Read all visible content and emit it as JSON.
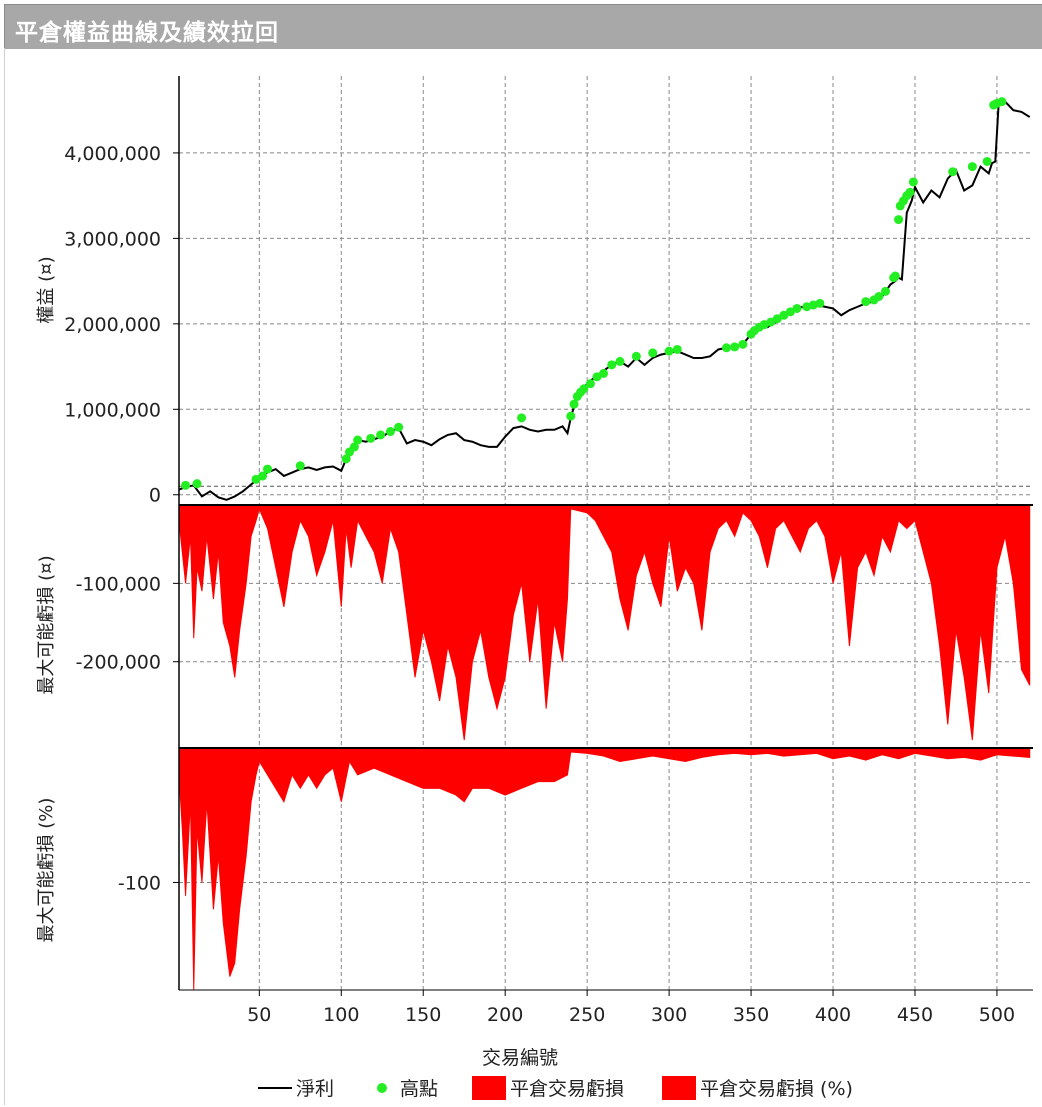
{
  "window": {
    "title": "平倉權益曲線及績效拉回"
  },
  "chart_data": {
    "type": "line",
    "x_label": "交易編號",
    "x_ticks": [
      50,
      100,
      150,
      200,
      250,
      300,
      350,
      400,
      450,
      500
    ],
    "x_range": [
      1,
      522
    ],
    "grid": true,
    "legend_position": "bottom",
    "legend": [
      "淨利",
      "高點",
      "平倉交易虧損",
      "平倉交易虧損 (%)"
    ],
    "colors": {
      "net_profit": "#000000",
      "highs": "#22ee22",
      "drawdown": "#ff0000"
    },
    "panels": [
      {
        "name": "equity",
        "ylabel": "權益 (¤)",
        "y_ticks": [
          "0",
          "1,000,000",
          "2,000,000",
          "3,000,000",
          "4,000,000"
        ],
        "y_tick_values": [
          0,
          1000000,
          2000000,
          3000000,
          4000000
        ],
        "y_range": [
          -120000,
          4900000
        ],
        "series": [
          {
            "name": "淨利",
            "x": [
              1,
              5,
              10,
              15,
              20,
              25,
              30,
              35,
              40,
              45,
              50,
              55,
              60,
              65,
              70,
              75,
              80,
              85,
              90,
              95,
              100,
              103,
              106,
              110,
              115,
              120,
              125,
              130,
              135,
              140,
              145,
              150,
              155,
              160,
              165,
              170,
              175,
              180,
              185,
              190,
              195,
              200,
              205,
              210,
              215,
              220,
              225,
              230,
              235,
              238,
              240,
              243,
              246,
              250,
              255,
              260,
              265,
              270,
              275,
              280,
              285,
              290,
              295,
              300,
              305,
              310,
              315,
              320,
              325,
              330,
              335,
              340,
              345,
              350,
              355,
              360,
              365,
              370,
              375,
              380,
              385,
              390,
              395,
              400,
              405,
              410,
              415,
              420,
              425,
              430,
              435,
              438,
              440,
              442,
              445,
              448,
              450,
              455,
              460,
              465,
              470,
              475,
              480,
              485,
              490,
              495,
              497,
              499,
              501,
              505,
              510,
              515,
              520
            ],
            "y": [
              60000,
              90000,
              110000,
              -20000,
              40000,
              -30000,
              -60000,
              -20000,
              40000,
              120000,
              200000,
              260000,
              300000,
              220000,
              260000,
              300000,
              320000,
              290000,
              320000,
              330000,
              280000,
              420000,
              560000,
              640000,
              620000,
              650000,
              680000,
              740000,
              780000,
              600000,
              640000,
              620000,
              580000,
              650000,
              700000,
              720000,
              640000,
              620000,
              580000,
              560000,
              560000,
              680000,
              780000,
              800000,
              760000,
              740000,
              760000,
              760000,
              800000,
              720000,
              900000,
              1100000,
              1200000,
              1300000,
              1380000,
              1450000,
              1520000,
              1560000,
              1500000,
              1600000,
              1520000,
              1600000,
              1640000,
              1660000,
              1680000,
              1640000,
              1600000,
              1600000,
              1620000,
              1700000,
              1720000,
              1740000,
              1760000,
              1880000,
              1980000,
              1960000,
              2020000,
              2100000,
              2160000,
              2200000,
              2180000,
              2220000,
              2200000,
              2180000,
              2100000,
              2160000,
              2200000,
              2240000,
              2260000,
              2320000,
              2460000,
              2500000,
              2540000,
              2520000,
              3300000,
              3440000,
              3600000,
              3420000,
              3560000,
              3480000,
              3700000,
              3800000,
              3560000,
              3620000,
              3840000,
              3760000,
              3880000,
              3900000,
              4560000,
              4600000,
              4500000,
              4480000,
              4420000
            ]
          },
          {
            "name": "高點",
            "x": [
              5,
              12,
              48,
              52,
              55,
              75,
              103,
              105,
              108,
              110,
              118,
              124,
              130,
              135,
              210,
              240,
              242,
              244,
              246,
              248,
              252,
              256,
              260,
              265,
              270,
              280,
              290,
              300,
              305,
              335,
              340,
              345,
              350,
              352,
              355,
              358,
              362,
              366,
              370,
              374,
              378,
              384,
              388,
              392,
              420,
              425,
              428,
              432,
              437,
              438,
              440,
              441,
              443,
              445,
              447,
              449,
              473,
              485,
              494,
              498,
              500,
              503
            ],
            "y": [
              110000,
              130000,
              180000,
              220000,
              300000,
              340000,
              420000,
              500000,
              560000,
              640000,
              660000,
              700000,
              740000,
              790000,
              900000,
              920000,
              1060000,
              1150000,
              1200000,
              1240000,
              1300000,
              1380000,
              1420000,
              1520000,
              1560000,
              1620000,
              1660000,
              1680000,
              1700000,
              1720000,
              1730000,
              1760000,
              1880000,
              1920000,
              1960000,
              1990000,
              2020000,
              2060000,
              2100000,
              2140000,
              2180000,
              2200000,
              2220000,
              2240000,
              2260000,
              2280000,
              2320000,
              2380000,
              2540000,
              2560000,
              3220000,
              3380000,
              3440000,
              3500000,
              3540000,
              3660000,
              3780000,
              3840000,
              3900000,
              4560000,
              4580000,
              4600000
            ]
          }
        ]
      },
      {
        "name": "drawdown",
        "ylabel": "最大可能虧損 (¤)",
        "y_ticks": [
          "-100,000",
          "-200,000"
        ],
        "y_tick_values": [
          -100000,
          -200000
        ],
        "y_range": [
          -305000,
          0
        ],
        "series": [
          {
            "name": "平倉交易虧損",
            "x": [
              1,
              3,
              5,
              8,
              10,
              12,
              15,
              18,
              22,
              25,
              28,
              32,
              35,
              38,
              42,
              45,
              48,
              50,
              55,
              60,
              65,
              70,
              75,
              80,
              85,
              90,
              95,
              100,
              103,
              106,
              110,
              115,
              120,
              125,
              130,
              135,
              140,
              145,
              150,
              155,
              160,
              165,
              170,
              175,
              180,
              185,
              190,
              195,
              200,
              205,
              210,
              215,
              220,
              225,
              230,
              235,
              238,
              240,
              250,
              255,
              260,
              265,
              270,
              275,
              280,
              285,
              290,
              295,
              300,
              305,
              310,
              315,
              320,
              325,
              330,
              335,
              340,
              345,
              350,
              355,
              360,
              365,
              370,
              375,
              380,
              385,
              390,
              395,
              400,
              405,
              410,
              415,
              420,
              425,
              430,
              435,
              440,
              445,
              450,
              455,
              460,
              465,
              470,
              475,
              480,
              485,
              490,
              495,
              500,
              505,
              510,
              515,
              520
            ],
            "y": [
              -20000,
              -60000,
              -100000,
              -40000,
              -170000,
              -80000,
              -110000,
              -40000,
              -120000,
              -60000,
              -150000,
              -180000,
              -220000,
              -160000,
              -100000,
              -40000,
              -20000,
              -5000,
              -30000,
              -80000,
              -130000,
              -60000,
              -20000,
              -40000,
              -90000,
              -60000,
              -20000,
              -130000,
              -30000,
              -80000,
              -20000,
              -40000,
              -60000,
              -100000,
              -30000,
              -60000,
              -140000,
              -220000,
              -160000,
              -200000,
              -250000,
              -180000,
              -220000,
              -300000,
              -200000,
              -160000,
              -220000,
              -260000,
              -220000,
              -140000,
              -100000,
              -200000,
              -120000,
              -260000,
              -150000,
              -200000,
              -120000,
              -5000,
              -10000,
              -20000,
              -40000,
              -60000,
              -120000,
              -160000,
              -90000,
              -60000,
              -100000,
              -130000,
              -40000,
              -110000,
              -80000,
              -100000,
              -160000,
              -60000,
              -30000,
              -20000,
              -40000,
              -10000,
              -20000,
              -40000,
              -80000,
              -30000,
              -20000,
              -40000,
              -60000,
              -30000,
              -20000,
              -40000,
              -100000,
              -60000,
              -180000,
              -80000,
              -60000,
              -90000,
              -40000,
              -60000,
              -20000,
              -30000,
              -20000,
              -60000,
              -100000,
              -180000,
              -280000,
              -160000,
              -220000,
              -300000,
              -160000,
              -240000,
              -80000,
              -40000,
              -100000,
              -210000,
              -230000
            ]
          }
        ]
      },
      {
        "name": "drawdown_pct",
        "ylabel": "最大可能虧損 (%)",
        "y_ticks": [
          "-100"
        ],
        "y_tick_values": [
          -100
        ],
        "y_range": [
          -180,
          0
        ],
        "series": [
          {
            "name": "平倉交易虧損 (%)",
            "x": [
              1,
              3,
              5,
              8,
              10,
              12,
              15,
              18,
              22,
              25,
              28,
              30,
              32,
              35,
              38,
              42,
              45,
              48,
              50,
              55,
              60,
              65,
              70,
              75,
              80,
              85,
              90,
              95,
              100,
              105,
              110,
              120,
              130,
              140,
              150,
              160,
              170,
              175,
              180,
              190,
              200,
              210,
              220,
              230,
              238,
              240,
              250,
              260,
              270,
              280,
              290,
              300,
              310,
              320,
              330,
              340,
              350,
              360,
              370,
              380,
              390,
              400,
              410,
              420,
              430,
              440,
              450,
              460,
              470,
              480,
              490,
              500,
              510,
              520
            ],
            "y": [
              -20,
              -60,
              -110,
              -40,
              -180,
              -60,
              -100,
              -40,
              -120,
              -80,
              -130,
              -150,
              -170,
              -160,
              -120,
              -80,
              -40,
              -20,
              -10,
              -20,
              -30,
              -40,
              -20,
              -30,
              -20,
              -30,
              -20,
              -15,
              -40,
              -10,
              -20,
              -15,
              -20,
              -25,
              -30,
              -30,
              -35,
              -40,
              -30,
              -30,
              -35,
              -30,
              -25,
              -25,
              -20,
              -3,
              -4,
              -6,
              -10,
              -8,
              -6,
              -8,
              -10,
              -7,
              -5,
              -4,
              -5,
              -4,
              -6,
              -5,
              -4,
              -8,
              -6,
              -9,
              -5,
              -8,
              -4,
              -6,
              -8,
              -7,
              -9,
              -5,
              -6,
              -7
            ]
          }
        ]
      }
    ]
  }
}
